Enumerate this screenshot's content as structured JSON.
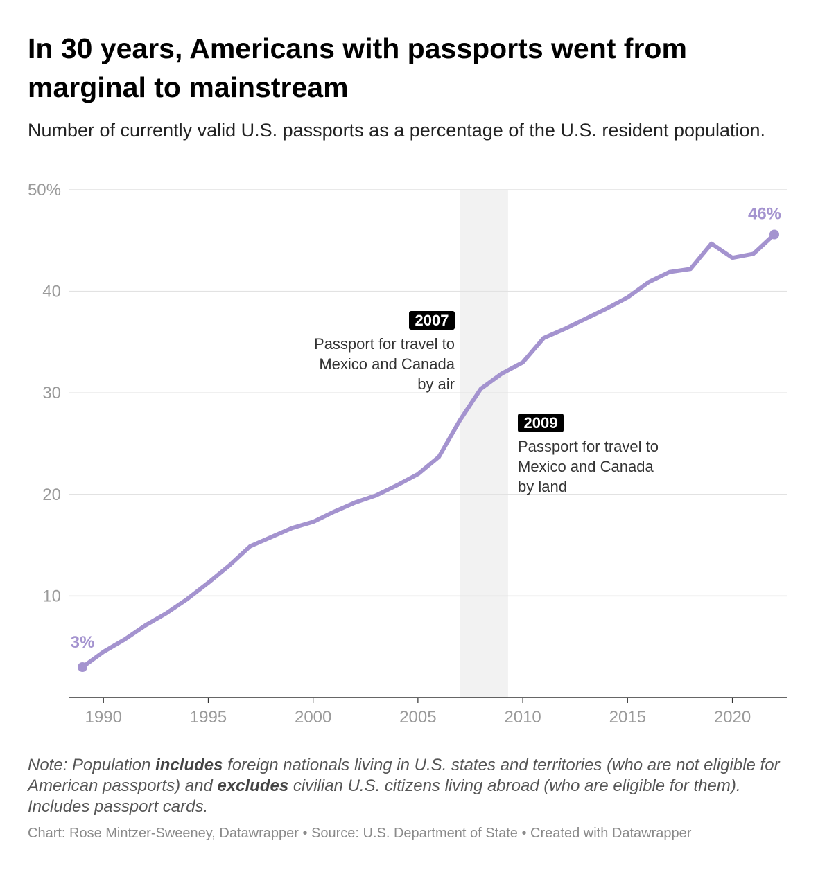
{
  "header": {
    "title": "In 30 years, Americans with passports went from marginal to mainstream",
    "subtitle": "Number of currently valid U.S. passports as a percentage of the U.S. resident population."
  },
  "chart_data": {
    "type": "line",
    "x": [
      1989,
      1990,
      1991,
      1992,
      1993,
      1994,
      1995,
      1996,
      1997,
      1998,
      1999,
      2000,
      2001,
      2002,
      2003,
      2004,
      2005,
      2006,
      2007,
      2008,
      2009,
      2010,
      2011,
      2012,
      2013,
      2014,
      2015,
      2016,
      2017,
      2018,
      2019,
      2020,
      2021,
      2022
    ],
    "series": [
      {
        "name": "",
        "values": [
          3.0,
          4.5,
          5.7,
          7.1,
          8.3,
          9.7,
          11.3,
          13.0,
          14.9,
          15.8,
          16.7,
          17.3,
          18.3,
          19.2,
          19.9,
          20.9,
          22.0,
          23.7,
          27.3,
          30.4,
          31.9,
          33.0,
          35.4,
          36.3,
          37.3,
          38.3,
          39.4,
          40.9,
          41.9,
          42.2,
          44.7,
          43.3,
          43.7,
          45.6
        ],
        "color": "#a493cf"
      }
    ],
    "xticks": [
      "1990",
      "1995",
      "2000",
      "2005",
      "2010",
      "2015",
      "2020"
    ],
    "yticks": [
      "10",
      "20",
      "30",
      "40",
      "50%"
    ],
    "xlim": [
      1989,
      2022
    ],
    "ylim": [
      0,
      50
    ],
    "grid": true,
    "legend": "none",
    "highlight_range": [
      2007,
      2009.3
    ],
    "endpoint_labels": {
      "start": "3%",
      "end": "46%"
    },
    "annotations": [
      {
        "year_label": "2007",
        "lines": [
          "Passport for travel to",
          "Mexico and Canada",
          "by air"
        ]
      },
      {
        "year_label": "2009",
        "lines": [
          "Passport for travel to",
          "Mexico and Canada",
          "by land"
        ]
      }
    ]
  },
  "footer": {
    "note_parts": [
      "Note: Population ",
      "includes",
      " foreign nationals living in U.S. states and territories (who are not eligible for American passports) and ",
      "excludes",
      " civilian U.S. citizens living abroad (who are eligible for them). Includes passport cards."
    ],
    "credit": "Chart: Rose Mintzer-Sweeney, Datawrapper • Source: U.S. Department of State • Created with Datawrapper"
  },
  "colors": {
    "line": "#a493cf",
    "grid": "#e2e2e2",
    "axis": "#333333",
    "highlight": "#f2f2f2",
    "label_bg": "#000000"
  }
}
